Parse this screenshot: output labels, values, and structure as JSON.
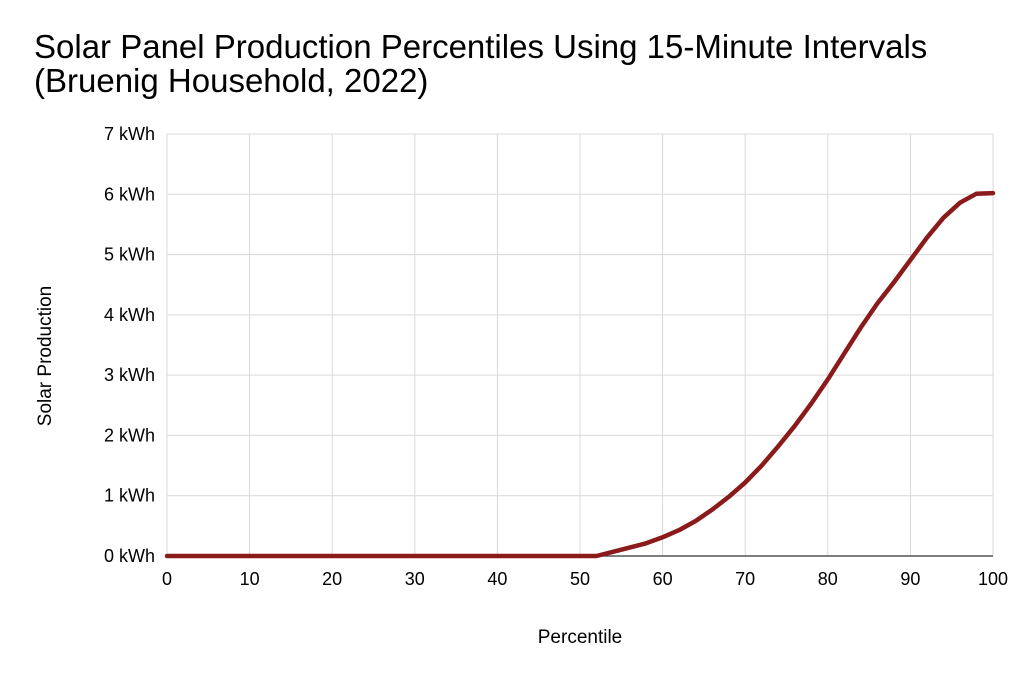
{
  "chart_data": {
    "type": "line",
    "title_line1": "Solar Panel Production Percentiles Using 15-Minute Intervals",
    "title_line2": "(Bruenig Household, 2022)",
    "xlabel": "Percentile",
    "ylabel": "Solar Production",
    "xlim": [
      0,
      100
    ],
    "ylim": [
      0,
      7
    ],
    "x_ticks": [
      0,
      10,
      20,
      30,
      40,
      50,
      60,
      70,
      80,
      90,
      100
    ],
    "x_tick_labels": [
      "0",
      "10",
      "20",
      "30",
      "40",
      "50",
      "60",
      "70",
      "80",
      "90",
      "100"
    ],
    "y_ticks": [
      0,
      1,
      2,
      3,
      4,
      5,
      6,
      7
    ],
    "y_tick_labels": [
      "0 kWh",
      "1 kWh",
      "2 kWh",
      "3 kWh",
      "4 kWh",
      "5 kWh",
      "6 kWh",
      "7 kWh"
    ],
    "grid": true,
    "legend": "none",
    "series": [
      {
        "color": "#8b1a1a",
        "x": [
          0,
          10,
          20,
          30,
          40,
          50,
          52,
          54,
          56,
          58,
          60,
          62,
          64,
          66,
          68,
          70,
          72,
          74,
          76,
          78,
          80,
          82,
          84,
          86,
          88,
          90,
          92,
          94,
          96,
          98,
          100
        ],
        "y": [
          0,
          0,
          0,
          0,
          0,
          0,
          0,
          0.07,
          0.14,
          0.21,
          0.31,
          0.43,
          0.58,
          0.77,
          0.98,
          1.22,
          1.5,
          1.82,
          2.16,
          2.53,
          2.93,
          3.36,
          3.79,
          4.19,
          4.54,
          4.91,
          5.28,
          5.61,
          5.86,
          6.01,
          6.02
        ]
      }
    ]
  }
}
